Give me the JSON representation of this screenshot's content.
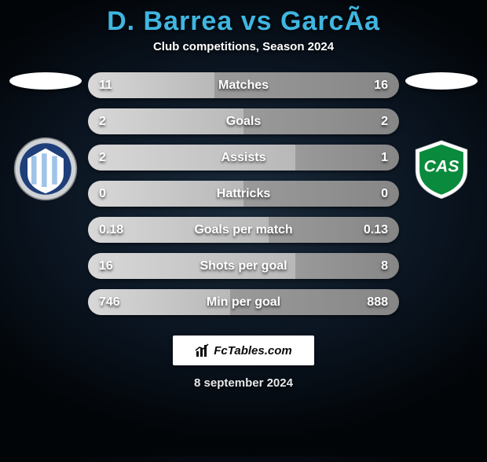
{
  "title_color": "#3fb6e0",
  "title": "D. Barrea vs GarcÃ­a",
  "subtitle": "Club competitions, Season 2024",
  "left": {
    "nation_bg": "#ffffff",
    "crest": {
      "outer": "#cfd3d6",
      "ring": "#1f3f7a",
      "stripes": [
        "#9fc4e8",
        "#ffffff"
      ]
    }
  },
  "right": {
    "nation_bg": "#ffffff",
    "crest": {
      "outer": "#ffffff",
      "fill": "#0a8a3c",
      "text": "CAS"
    }
  },
  "rows": [
    {
      "label": "Matches",
      "l": "11",
      "r": "16",
      "lw": 0.407
    },
    {
      "label": "Goals",
      "l": "2",
      "r": "2",
      "lw": 0.5
    },
    {
      "label": "Assists",
      "l": "2",
      "r": "1",
      "lw": 0.667
    },
    {
      "label": "Hattricks",
      "l": "0",
      "r": "0",
      "lw": 0.5
    },
    {
      "label": "Goals per match",
      "l": "0.18",
      "r": "0.13",
      "lw": 0.581
    },
    {
      "label": "Shots per goal",
      "l": "16",
      "r": "8",
      "lw": 0.667
    },
    {
      "label": "Min per goal",
      "l": "746",
      "r": "888",
      "lw": 0.457
    }
  ],
  "row_style": {
    "height": 33,
    "radius": 17,
    "gap": 13,
    "left_grad": [
      "#d8d8d8",
      "#b8b8b8"
    ],
    "right_grad": [
      "#9a9a9a",
      "#868686"
    ],
    "font_size": 16
  },
  "brand": "FcTables.com",
  "date": "8 september 2024"
}
